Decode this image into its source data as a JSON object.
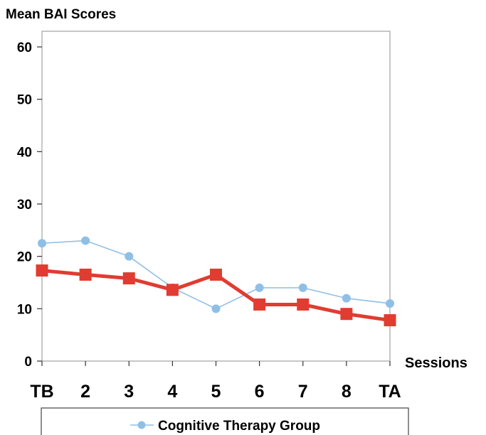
{
  "chart_data": {
    "type": "line",
    "title": "",
    "ylabel": "Mean BAI Scores",
    "xlabel": "Sessions",
    "categories": [
      "TB",
      "2",
      "3",
      "4",
      "5",
      "6",
      "7",
      "8",
      "TA"
    ],
    "ylim": [
      0,
      60
    ],
    "yticks": [
      0,
      10,
      20,
      30,
      40,
      50,
      60
    ],
    "grid": false,
    "legend_position": "bottom",
    "series": [
      {
        "name": "Cognitive Therapy Group",
        "color": "#8fbfe6",
        "marker": "circle",
        "values": [
          22.5,
          23,
          20,
          14,
          10,
          14,
          14,
          12,
          11
        ]
      },
      {
        "name": "",
        "color": "#e03c31",
        "marker": "square",
        "values": [
          17.3,
          16.5,
          15.8,
          13.6,
          16.5,
          10.8,
          10.8,
          9,
          7.8
        ]
      }
    ]
  }
}
